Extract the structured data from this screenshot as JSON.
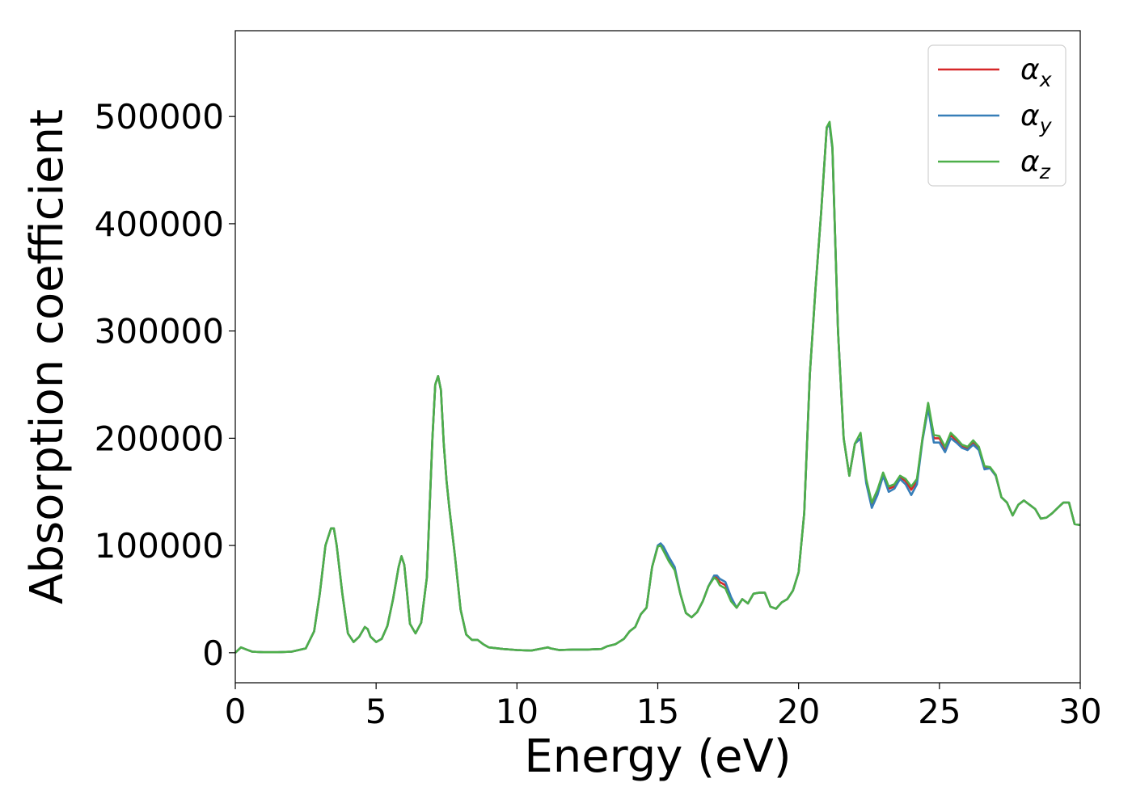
{
  "chart_data": {
    "type": "line",
    "title": "",
    "xlabel": "Energy (eV)",
    "ylabel": "Absorption coefficient",
    "xlim": [
      0,
      30
    ],
    "ylim": [
      -28000,
      580000
    ],
    "xticks": [
      0,
      5,
      10,
      15,
      20,
      25,
      30
    ],
    "yticks": [
      0,
      100000,
      200000,
      300000,
      400000,
      500000
    ],
    "grid": false,
    "legend_position": "top-right",
    "x": [
      0.0,
      0.2,
      0.4,
      0.6,
      1.0,
      1.5,
      2.0,
      2.5,
      2.8,
      3.0,
      3.2,
      3.4,
      3.5,
      3.6,
      3.8,
      4.0,
      4.2,
      4.4,
      4.6,
      4.7,
      4.8,
      5.0,
      5.2,
      5.4,
      5.6,
      5.8,
      5.9,
      6.0,
      6.1,
      6.2,
      6.4,
      6.6,
      6.8,
      7.0,
      7.1,
      7.2,
      7.3,
      7.4,
      7.5,
      7.6,
      7.8,
      8.0,
      8.2,
      8.4,
      8.6,
      8.8,
      9.0,
      9.5,
      10.0,
      10.5,
      11.0,
      11.1,
      11.2,
      11.5,
      12.0,
      12.5,
      13.0,
      13.2,
      13.5,
      13.8,
      14.0,
      14.2,
      14.4,
      14.6,
      14.8,
      15.0,
      15.1,
      15.2,
      15.4,
      15.6,
      15.8,
      16.0,
      16.2,
      16.4,
      16.6,
      16.8,
      17.0,
      17.1,
      17.2,
      17.4,
      17.6,
      17.8,
      18.0,
      18.2,
      18.4,
      18.6,
      18.8,
      19.0,
      19.2,
      19.4,
      19.6,
      19.8,
      20.0,
      20.2,
      20.4,
      20.6,
      20.8,
      21.0,
      21.1,
      21.2,
      21.4,
      21.6,
      21.8,
      22.0,
      22.2,
      22.4,
      22.6,
      22.8,
      23.0,
      23.2,
      23.4,
      23.6,
      23.8,
      24.0,
      24.2,
      24.4,
      24.6,
      24.8,
      25.0,
      25.2,
      25.4,
      25.6,
      25.8,
      26.0,
      26.2,
      26.4,
      26.6,
      26.8,
      27.0,
      27.2,
      27.4,
      27.6,
      27.8,
      28.0,
      28.2,
      28.4,
      28.6,
      28.8,
      29.0,
      29.2,
      29.4,
      29.6,
      29.8,
      30.0
    ],
    "series": [
      {
        "name": "αx",
        "color": "#d62728",
        "values": [
          0,
          5000,
          3000,
          1000,
          500,
          500,
          1000,
          4000,
          20000,
          55000,
          100000,
          116000,
          116000,
          100000,
          55000,
          18000,
          10000,
          15000,
          24000,
          22000,
          15000,
          10000,
          13000,
          25000,
          50000,
          80000,
          90000,
          82000,
          55000,
          27000,
          18000,
          28000,
          70000,
          200000,
          250000,
          258000,
          245000,
          195000,
          160000,
          135000,
          90000,
          40000,
          17000,
          12000,
          12000,
          8000,
          5000,
          3500,
          2500,
          2000,
          4500,
          5000,
          4000,
          2500,
          3000,
          3000,
          3500,
          6000,
          8000,
          13000,
          20000,
          24000,
          36000,
          42000,
          80000,
          99000,
          101000,
          97000,
          87000,
          78000,
          55000,
          37000,
          33000,
          38000,
          48000,
          62000,
          71000,
          70000,
          66000,
          63000,
          50000,
          42000,
          50000,
          46000,
          55000,
          56000,
          56000,
          43000,
          41000,
          47000,
          50000,
          58000,
          75000,
          130000,
          260000,
          340000,
          410000,
          490000,
          492000,
          470000,
          300000,
          200000,
          165000,
          195000,
          200000,
          160000,
          138000,
          150000,
          166000,
          153000,
          155000,
          164000,
          160000,
          152000,
          160000,
          200000,
          232000,
          200000,
          200000,
          190000,
          203000,
          198000,
          192000,
          190000,
          196000,
          190000,
          172000,
          172000,
          165000,
          145000,
          140000,
          128000,
          138000,
          142000,
          138000,
          134000,
          125000,
          126000,
          130000,
          135000,
          140000,
          140000,
          120000,
          119000
        ]
      },
      {
        "name": "αy",
        "color": "#377eb8",
        "values": [
          0,
          5000,
          3000,
          1000,
          500,
          500,
          1000,
          4000,
          20000,
          55000,
          100000,
          116000,
          116000,
          100000,
          55000,
          18000,
          10000,
          15000,
          24000,
          22000,
          15000,
          10000,
          13000,
          25000,
          50000,
          80000,
          90000,
          82000,
          55000,
          27000,
          18000,
          28000,
          70000,
          200000,
          250000,
          258000,
          245000,
          195000,
          160000,
          135000,
          90000,
          40000,
          17000,
          12000,
          12000,
          8000,
          5000,
          3500,
          2500,
          2000,
          4500,
          5000,
          4000,
          2500,
          3000,
          3000,
          3500,
          6000,
          8000,
          13000,
          20000,
          24000,
          36000,
          42000,
          80000,
          100000,
          102000,
          99000,
          89000,
          80000,
          55000,
          37000,
          33000,
          38000,
          48000,
          62000,
          72000,
          72000,
          69000,
          66000,
          52000,
          42000,
          50000,
          46000,
          55000,
          56000,
          56000,
          43000,
          41000,
          47000,
          50000,
          58000,
          75000,
          130000,
          260000,
          340000,
          410000,
          490000,
          492000,
          470000,
          300000,
          200000,
          165000,
          195000,
          200000,
          158000,
          135000,
          147000,
          165000,
          150000,
          153000,
          162000,
          157000,
          147000,
          157000,
          198000,
          228000,
          196000,
          196000,
          187000,
          200000,
          196000,
          191000,
          189000,
          194000,
          189000,
          171000,
          172000,
          165000,
          145000,
          140000,
          128000,
          138000,
          142000,
          138000,
          134000,
          125000,
          126000,
          130000,
          135000,
          140000,
          140000,
          120000,
          119000
        ]
      },
      {
        "name": "αz",
        "color": "#4daf4a",
        "values": [
          0,
          5000,
          3000,
          1000,
          500,
          500,
          1000,
          4000,
          20000,
          55000,
          100000,
          116000,
          116000,
          100000,
          55000,
          18000,
          10000,
          15000,
          24000,
          22000,
          15000,
          10000,
          13000,
          25000,
          50000,
          80000,
          90000,
          82000,
          55000,
          27000,
          18000,
          28000,
          70000,
          200000,
          250000,
          258000,
          245000,
          195000,
          160000,
          135000,
          90000,
          40000,
          17000,
          12000,
          12000,
          8000,
          5000,
          3500,
          2500,
          2000,
          4500,
          5000,
          4000,
          2500,
          3000,
          3000,
          3500,
          6000,
          8000,
          13000,
          20000,
          24000,
          36000,
          42000,
          80000,
          99000,
          100000,
          95000,
          85000,
          77000,
          55000,
          37000,
          33000,
          38000,
          48000,
          62000,
          70000,
          68000,
          63000,
          60000,
          48000,
          42000,
          50000,
          46000,
          55000,
          56000,
          56000,
          43000,
          41000,
          47000,
          50000,
          58000,
          75000,
          130000,
          260000,
          340000,
          410000,
          490000,
          495000,
          472000,
          300000,
          200000,
          165000,
          195000,
          205000,
          162000,
          140000,
          152000,
          168000,
          155000,
          157000,
          165000,
          162000,
          155000,
          162000,
          200000,
          233000,
          203000,
          202000,
          192000,
          205000,
          200000,
          194000,
          192000,
          198000,
          192000,
          174000,
          173000,
          166000,
          145000,
          140000,
          128000,
          138000,
          142000,
          138000,
          134000,
          125000,
          126000,
          130000,
          135000,
          140000,
          140000,
          120000,
          119000
        ]
      }
    ]
  }
}
